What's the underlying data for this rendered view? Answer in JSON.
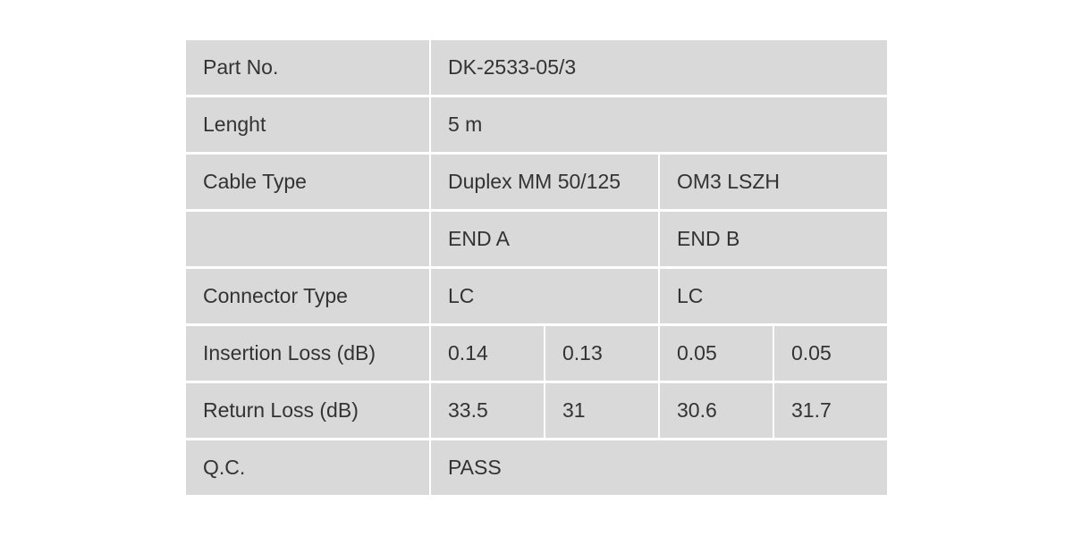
{
  "table": {
    "rows": [
      {
        "label": "Part No.",
        "values": [
          "DK-2533-05/3"
        ]
      },
      {
        "label": "Lenght",
        "values": [
          "5 m"
        ]
      },
      {
        "label": "Cable Type",
        "values": [
          "Duplex MM 50/125",
          "OM3 LSZH"
        ]
      },
      {
        "values": [
          "END A",
          "END B"
        ]
      },
      {
        "label": "Connector Type",
        "values": [
          "LC",
          "LC"
        ]
      },
      {
        "label": "Insertion Loss (dB)",
        "values": [
          "0.14",
          "0.13",
          "0.05",
          "0.05"
        ]
      },
      {
        "label": "Return Loss (dB)",
        "values": [
          "33.5",
          "31",
          "30.6",
          "31.7"
        ]
      },
      {
        "label": "Q.C.",
        "values": [
          "PASS"
        ]
      }
    ]
  }
}
